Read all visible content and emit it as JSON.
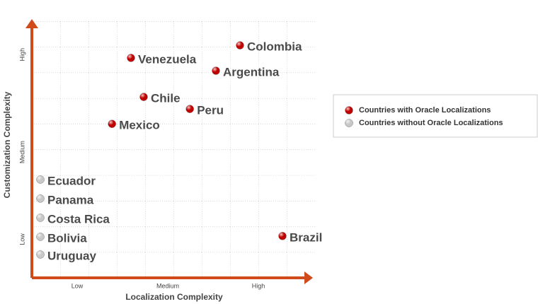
{
  "chart_data": {
    "type": "scatter",
    "x_label": "Localization Complexity",
    "y_label": "Customization Complexity",
    "xlim": [
      0,
      10
    ],
    "ylim": [
      0,
      10
    ],
    "xticks": [
      {
        "value": 1.6,
        "label": "Low"
      },
      {
        "value": 4.8,
        "label": "Medium"
      },
      {
        "value": 8.0,
        "label": "High"
      }
    ],
    "yticks": [
      {
        "value": 1.5,
        "label": "Low"
      },
      {
        "value": 4.9,
        "label": "Medium"
      },
      {
        "value": 8.7,
        "label": "High"
      }
    ],
    "axis_color": "#d04a1a",
    "series": [
      {
        "name": "Countries with Oracle Localizations",
        "color": "#c00000",
        "labels": [
          "Colombia",
          "Venezuela",
          "Argentina",
          "Chile",
          "Peru",
          "Mexico",
          "Brazil"
        ],
        "x": [
          7.35,
          3.5,
          6.5,
          3.95,
          5.58,
          2.83,
          8.85
        ],
        "values": [
          9.06,
          8.57,
          8.07,
          7.05,
          6.58,
          6.0,
          1.63
        ]
      },
      {
        "name": "Countries without Oracle Localizations",
        "color": "#c8c8c8",
        "labels": [
          "Ecuador",
          "Panama",
          "Costa Rica",
          "Bolivia",
          "Uruguay"
        ],
        "x": [
          0.3,
          0.3,
          0.3,
          0.3,
          0.3
        ],
        "values": [
          3.83,
          3.09,
          2.34,
          1.6,
          0.91
        ]
      }
    ]
  }
}
